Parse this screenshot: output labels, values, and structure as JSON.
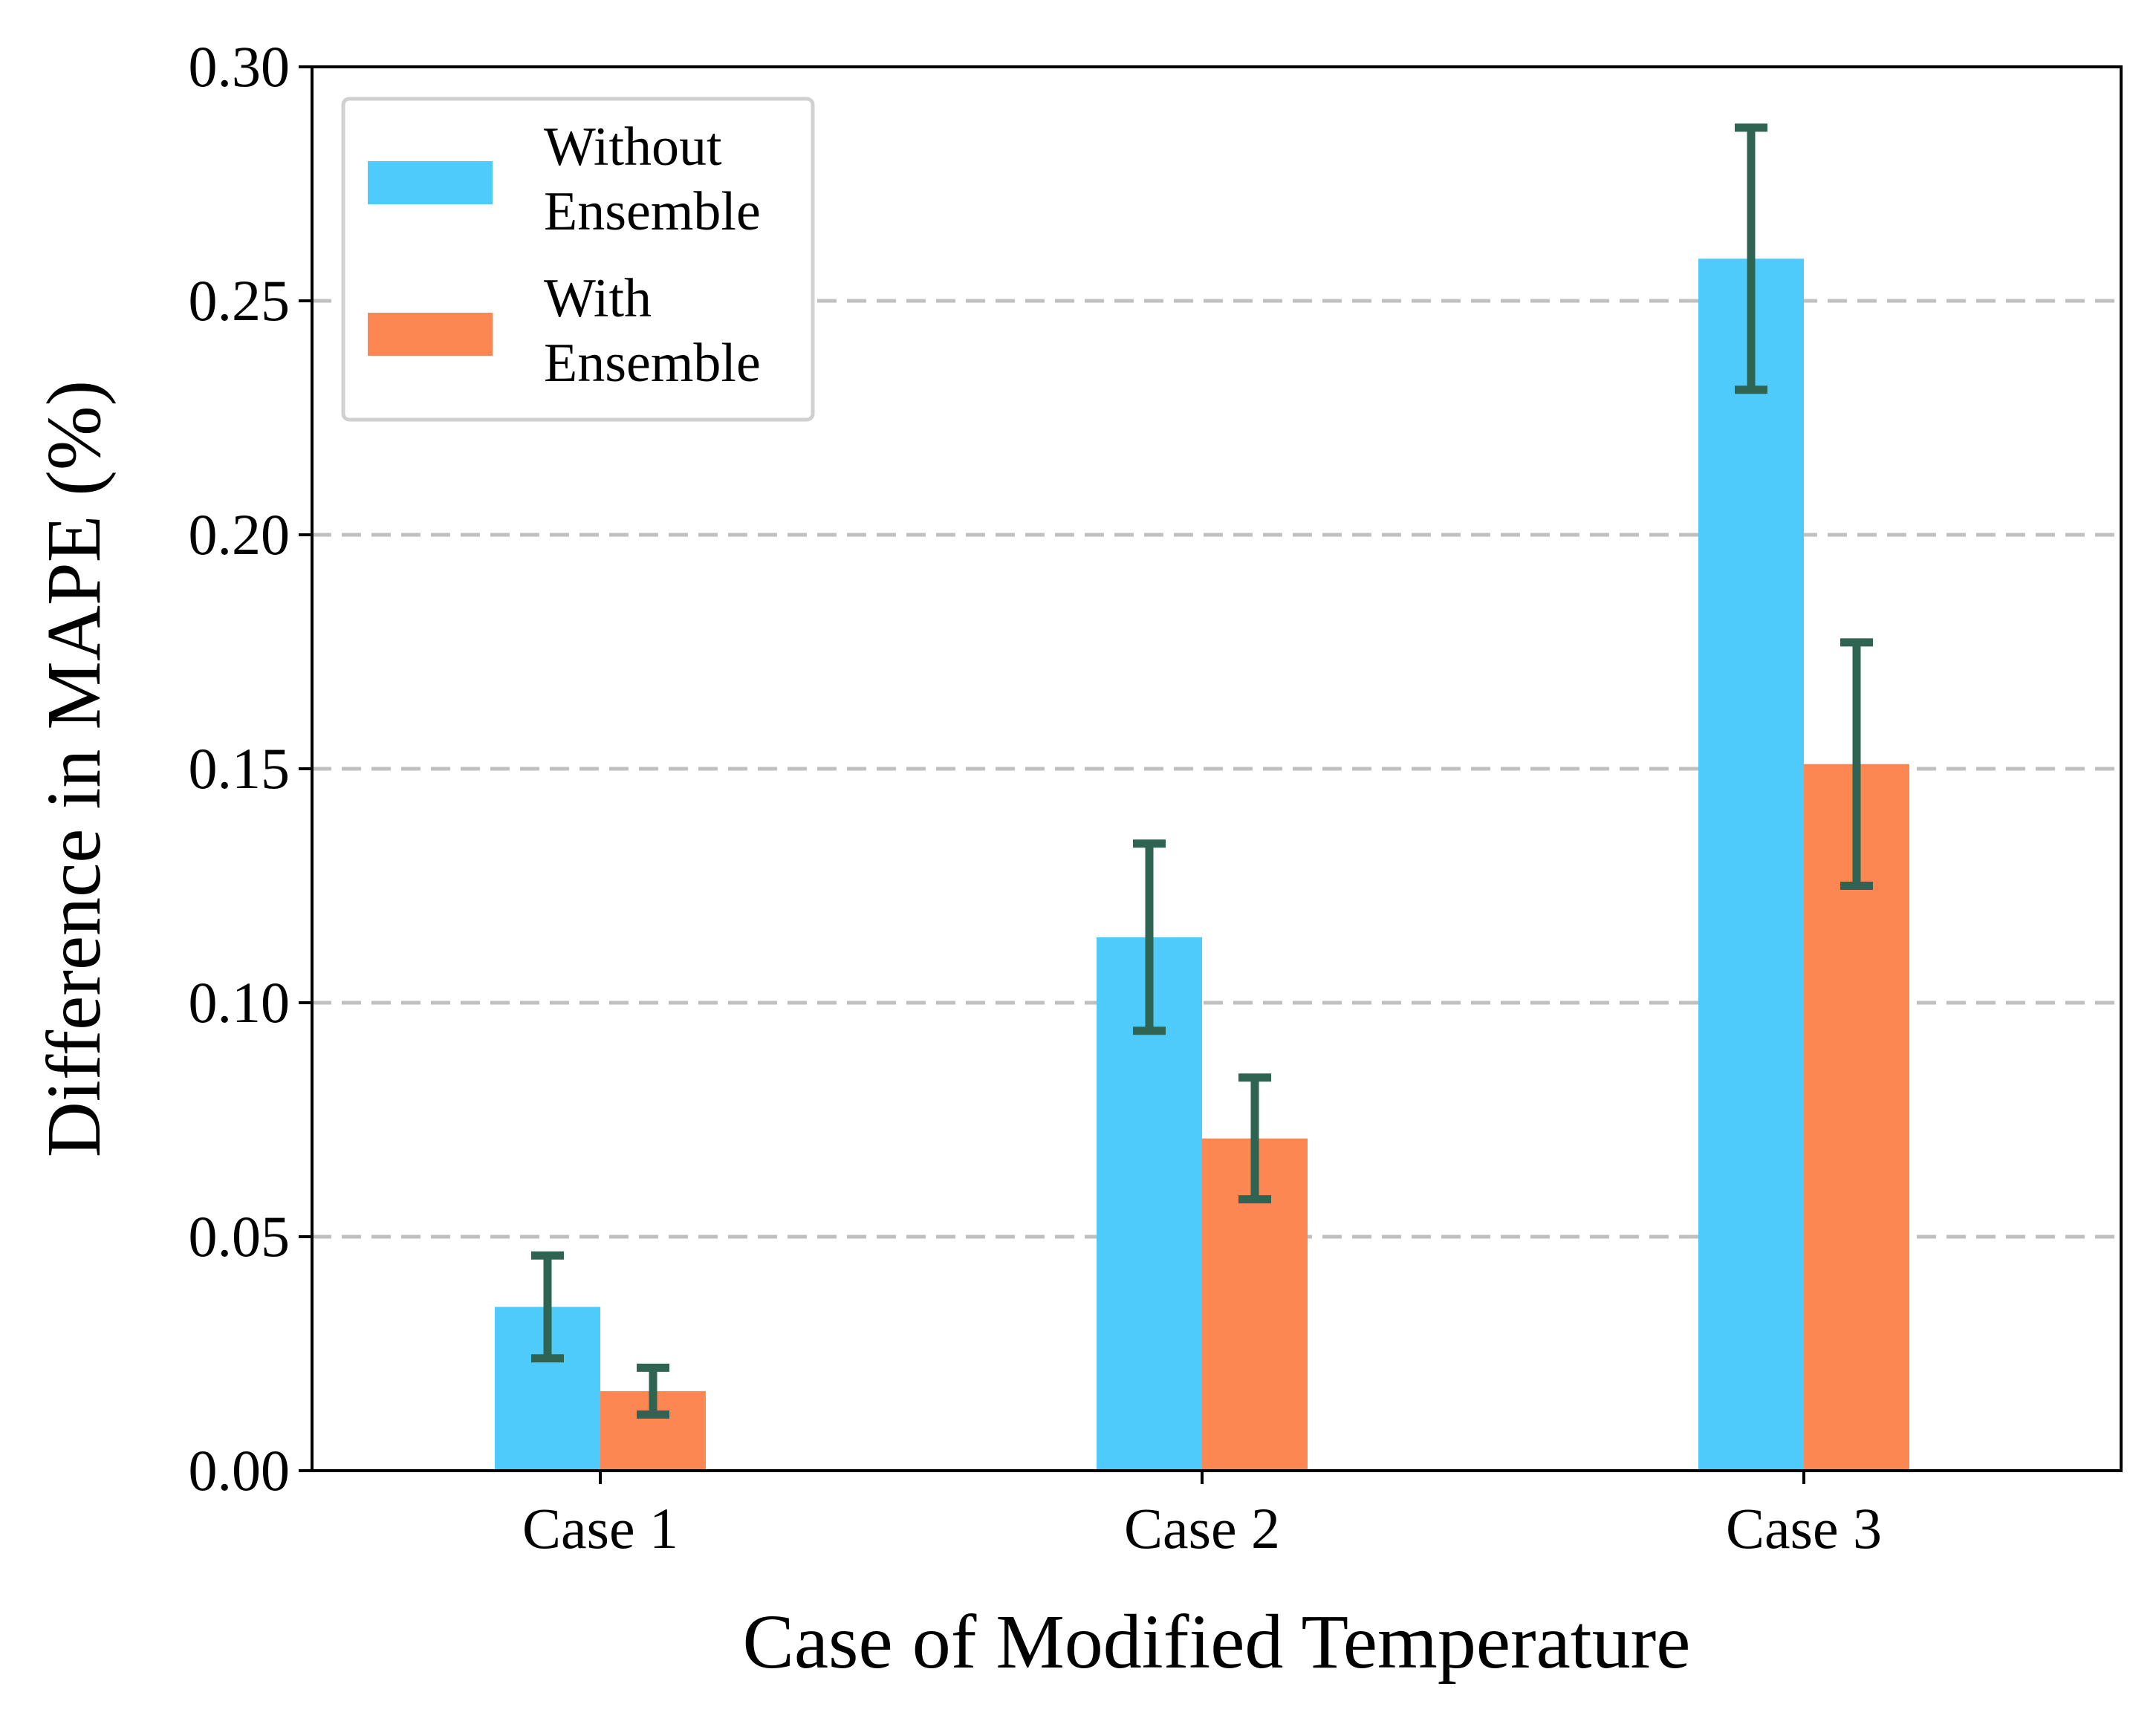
{
  "chart_data": {
    "type": "bar",
    "xlabel": "Case of Modified Temperature",
    "ylabel": "Difference in MAPE (%)",
    "categories": [
      "Case 1",
      "Case 2",
      "Case 3"
    ],
    "ylim": [
      0,
      0.3
    ],
    "yticks": [
      "0.00",
      "0.05",
      "0.10",
      "0.15",
      "0.20",
      "0.25",
      "0.30"
    ],
    "grid": "horizontal dashed",
    "legend_position": "top-left",
    "series": [
      {
        "name_lines": [
          "Without",
          "Ensemble"
        ],
        "color": "#4ecbfa",
        "values": [
          0.035,
          0.114,
          0.259
        ],
        "error_low": [
          0.024,
          0.094,
          0.231
        ],
        "error_high": [
          0.046,
          0.134,
          0.287
        ]
      },
      {
        "name_lines": [
          "With",
          "Ensemble"
        ],
        "color": "#fd8753",
        "values": [
          0.017,
          0.071,
          0.151
        ],
        "error_low": [
          0.012,
          0.058,
          0.125
        ],
        "error_high": [
          0.022,
          0.084,
          0.177
        ]
      }
    ],
    "errorbar_color": "#2f6452",
    "grid_color": "#c0c0c0"
  }
}
